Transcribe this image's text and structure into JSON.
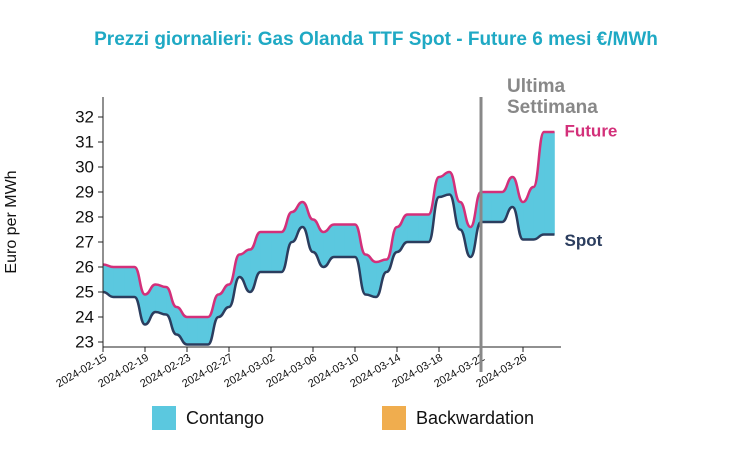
{
  "chart_data": {
    "type": "line",
    "title": "Prezzi giornalieri: Gas Olanda TTF Spot - Future 6 mesi €/MWh",
    "ylabel": "Euro per MWh",
    "x": [
      "2024-02-15",
      "2024-02-16",
      "2024-02-17",
      "2024-02-18",
      "2024-02-19",
      "2024-02-20",
      "2024-02-21",
      "2024-02-22",
      "2024-02-23",
      "2024-02-24",
      "2024-02-25",
      "2024-02-26",
      "2024-02-27",
      "2024-02-28",
      "2024-02-29",
      "2024-03-01",
      "2024-03-02",
      "2024-03-03",
      "2024-03-04",
      "2024-03-05",
      "2024-03-06",
      "2024-03-07",
      "2024-03-08",
      "2024-03-09",
      "2024-03-10",
      "2024-03-11",
      "2024-03-12",
      "2024-03-13",
      "2024-03-14",
      "2024-03-15",
      "2024-03-16",
      "2024-03-17",
      "2024-03-18",
      "2024-03-19",
      "2024-03-20",
      "2024-03-21",
      "2024-03-22",
      "2024-03-23",
      "2024-03-24",
      "2024-03-25",
      "2024-03-26",
      "2024-03-27",
      "2024-03-28",
      "2024-03-29"
    ],
    "series": [
      {
        "name": "Future",
        "color": "#d3307a",
        "values": [
          26.1,
          26.0,
          26.0,
          26.0,
          24.9,
          25.3,
          25.2,
          24.4,
          24.0,
          24.0,
          24.0,
          24.9,
          25.3,
          26.5,
          26.7,
          27.4,
          27.4,
          27.4,
          28.2,
          28.6,
          27.9,
          27.4,
          27.7,
          27.7,
          27.7,
          26.5,
          26.2,
          26.3,
          27.6,
          28.1,
          28.1,
          28.1,
          29.6,
          29.8,
          28.6,
          27.6,
          29.0,
          29.0,
          29.0,
          29.6,
          28.6,
          29.2,
          31.4,
          31.4
        ]
      },
      {
        "name": "Spot",
        "color": "#2b3d5e",
        "values": [
          25.0,
          24.8,
          24.8,
          24.8,
          23.7,
          24.2,
          24.1,
          23.3,
          22.9,
          22.9,
          22.9,
          24.0,
          24.4,
          25.6,
          25.0,
          25.8,
          25.8,
          25.8,
          27.0,
          27.6,
          26.6,
          26.0,
          26.4,
          26.4,
          26.4,
          24.9,
          24.8,
          25.8,
          26.6,
          27.0,
          27.0,
          27.0,
          28.8,
          28.9,
          27.5,
          26.4,
          27.8,
          27.8,
          27.8,
          28.4,
          27.1,
          27.1,
          27.3,
          27.3
        ]
      }
    ],
    "fill_legend": [
      {
        "name": "Contango",
        "color": "#5bc8df"
      },
      {
        "name": "Backwardation",
        "color": "#f0ad4e"
      }
    ],
    "xlim": [
      "2024-02-15",
      "2024-03-30"
    ],
    "xticks": [
      "2024-02-15",
      "2024-02-19",
      "2024-02-23",
      "2024-02-27",
      "2024-03-02",
      "2024-03-06",
      "2024-03-10",
      "2024-03-14",
      "2024-03-18",
      "2024-03-22",
      "2024-03-26"
    ],
    "ylim": [
      22.8,
      32.8
    ],
    "yticks": [
      23,
      24,
      25,
      26,
      27,
      28,
      29,
      30,
      31,
      32
    ],
    "vline": {
      "x": "2024-03-22",
      "color": "#888888",
      "label": [
        "Ultima",
        "Settimana"
      ]
    }
  }
}
